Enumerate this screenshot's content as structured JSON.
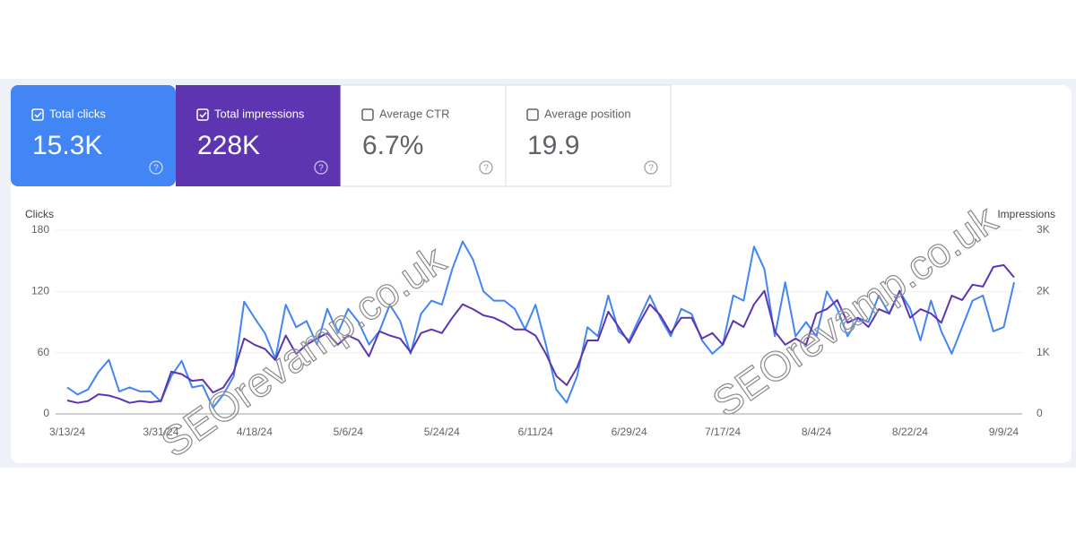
{
  "metrics": [
    {
      "label": "Total clicks",
      "value": "15.3K",
      "checked": true,
      "color": "#4285f4"
    },
    {
      "label": "Total impressions",
      "value": "228K",
      "checked": true,
      "color": "#5e35b1"
    },
    {
      "label": "Average CTR",
      "value": "6.7%",
      "checked": false,
      "color": "#ffffff"
    },
    {
      "label": "Average position",
      "value": "19.9",
      "checked": false,
      "color": "#ffffff"
    }
  ],
  "watermarks": [
    "SEOrevamp.co.uk",
    "SEOrevamp.co.uk"
  ],
  "chart_data": {
    "type": "line",
    "categories": [
      "3/13/24",
      null,
      null,
      null,
      null,
      null,
      null,
      null,
      null,
      "3/31/24",
      null,
      null,
      null,
      null,
      null,
      null,
      null,
      null,
      "4/18/24",
      null,
      null,
      null,
      null,
      null,
      null,
      null,
      null,
      "5/6/24",
      null,
      null,
      null,
      null,
      null,
      null,
      null,
      null,
      "5/24/24",
      null,
      null,
      null,
      null,
      null,
      null,
      null,
      null,
      "6/11/24",
      null,
      null,
      null,
      null,
      null,
      null,
      null,
      null,
      "6/29/24",
      null,
      null,
      null,
      null,
      null,
      null,
      null,
      null,
      "7/17/24",
      null,
      null,
      null,
      null,
      null,
      null,
      null,
      null,
      "8/4/24",
      null,
      null,
      null,
      null,
      null,
      null,
      null,
      null,
      "8/22/24",
      null,
      null,
      null,
      null,
      null,
      null,
      null,
      null,
      "9/9/24",
      null
    ],
    "series": [
      {
        "name": "Clicks",
        "color": "#4285f4",
        "axis": "y",
        "values": [
          26,
          19,
          24,
          41,
          53,
          22,
          26,
          22,
          22,
          12,
          37,
          52,
          26,
          28,
          6,
          19,
          37,
          110,
          94,
          79,
          54,
          107,
          85,
          91,
          68,
          103,
          79,
          103,
          90,
          68,
          81,
          107,
          91,
          59,
          98,
          111,
          107,
          142,
          169,
          151,
          120,
          111,
          111,
          103,
          83,
          107,
          68,
          24,
          11,
          37,
          85,
          76,
          116,
          81,
          72,
          94,
          116,
          94,
          76,
          103,
          98,
          72,
          59,
          68,
          116,
          111,
          164,
          142,
          76,
          129,
          76,
          90,
          76,
          120,
          103,
          76,
          94,
          90,
          116,
          98,
          120,
          103,
          72,
          111,
          81,
          59,
          85,
          111,
          116,
          81,
          85,
          129
        ]
      },
      {
        "name": "Impressions",
        "color": "#5e35b1",
        "axis": "y2",
        "values": [
          220,
          180,
          210,
          320,
          300,
          250,
          180,
          210,
          190,
          210,
          690,
          650,
          540,
          560,
          350,
          430,
          690,
          1230,
          1130,
          1060,
          880,
          1280,
          980,
          1130,
          1230,
          1320,
          1130,
          1280,
          1200,
          940,
          1350,
          1280,
          1230,
          1010,
          1320,
          1380,
          1320,
          1570,
          1790,
          1710,
          1610,
          1570,
          1490,
          1380,
          1380,
          1280,
          980,
          620,
          470,
          760,
          1200,
          1200,
          1670,
          1420,
          1160,
          1490,
          1790,
          1610,
          1320,
          1570,
          1570,
          1230,
          1320,
          1130,
          1520,
          1420,
          1790,
          2010,
          1350,
          1130,
          1230,
          1130,
          1640,
          1710,
          1860,
          1490,
          1570,
          1420,
          1710,
          1640,
          2010,
          1570,
          1710,
          1640,
          1490,
          1930,
          1860,
          2110,
          2080,
          2400,
          2430,
          2230
        ]
      }
    ],
    "ylim": [
      0,
      180
    ],
    "yticks": [
      0,
      60,
      120,
      180
    ],
    "y2lim": [
      0,
      3000
    ],
    "y2ticks": [
      0,
      {
        "value": 1000,
        "label": "1K"
      },
      {
        "value": 2000,
        "label": "2K"
      },
      {
        "value": 3000,
        "label": "3K"
      }
    ],
    "grid": true
  }
}
